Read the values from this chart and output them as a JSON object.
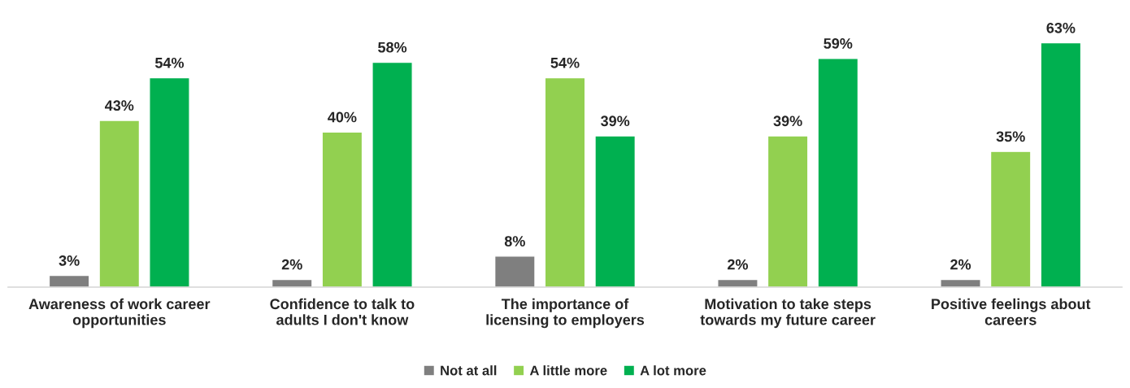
{
  "chart_data": {
    "type": "bar",
    "categories": [
      "Awareness of work career\nopportunities",
      "Confidence to talk to\nadults I don't know",
      "The importance of\nlicensing to employers",
      "Motivation to take steps\ntowards my future career",
      "Positive feelings about\ncareers"
    ],
    "series": [
      {
        "name": "Not at all",
        "color": "#7f7f7f",
        "values": [
          3,
          2,
          8,
          2,
          2
        ],
        "value_labels": [
          "3%",
          "2%",
          "8%",
          "2%",
          "2%"
        ]
      },
      {
        "name": "A little more",
        "color": "#92d050",
        "values": [
          43,
          40,
          54,
          39,
          35
        ],
        "value_labels": [
          "43%",
          "40%",
          "54%",
          "39%",
          "35%"
        ]
      },
      {
        "name": "A lot more",
        "color": "#00b050",
        "values": [
          54,
          58,
          39,
          59,
          63
        ],
        "value_labels": [
          "54%",
          "58%",
          "39%",
          "59%",
          "63%"
        ]
      }
    ],
    "legend": "bottom",
    "grid": false
  }
}
